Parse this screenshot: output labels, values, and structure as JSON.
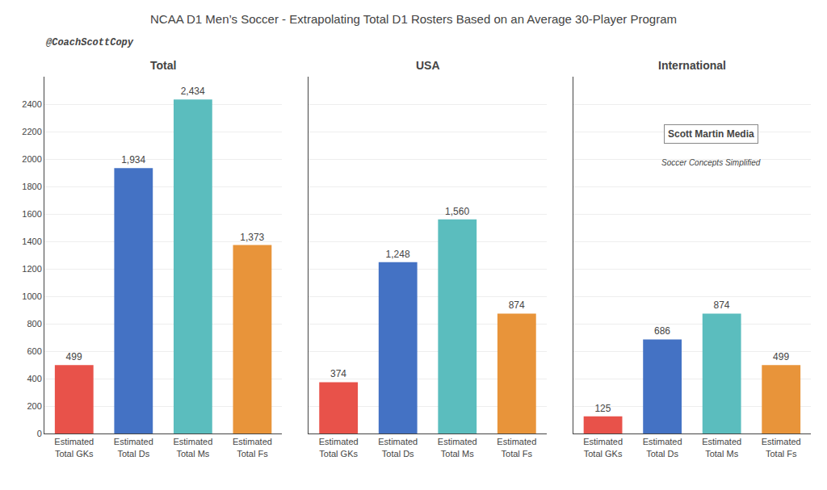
{
  "title": "NCAA D1 Men’s Soccer - Extrapolating Total D1 Rosters Based on an Average 30-Player Program",
  "annotations": [
    "@CoachScottCopy",
    "Scott Martin Media",
    "Soccer Concepts Simplified"
  ],
  "chart_data": [
    {
      "type": "bar",
      "title": "Total",
      "categories": [
        "Estimated\nTotal GKs",
        "Estimated\nTotal Ds",
        "Estimated\nTotal Ms",
        "Estimated\nTotal Fs"
      ],
      "values": [
        499,
        1934,
        2434,
        1373
      ],
      "value_labels": [
        "499",
        "1,934",
        "2,434",
        "1,373"
      ],
      "colors": [
        "#E8524A",
        "#4472C4",
        "#5BBDBE",
        "#E8943A"
      ],
      "ylim": [
        0,
        2600
      ],
      "yticks": [
        0,
        200,
        400,
        600,
        800,
        1000,
        1200,
        1400,
        1600,
        1800,
        2000,
        2200,
        2400
      ],
      "grid": true,
      "data_labels": true
    },
    {
      "type": "bar",
      "title": "USA",
      "categories": [
        "Estimated\nTotal GKs",
        "Estimated\nTotal Ds",
        "Estimated\nTotal Ms",
        "Estimated\nTotal Fs"
      ],
      "values": [
        374,
        1248,
        1560,
        874
      ],
      "value_labels": [
        "374",
        "1,248",
        "1,560",
        "874"
      ],
      "colors": [
        "#E8524A",
        "#4472C4",
        "#5BBDBE",
        "#E8943A"
      ],
      "ylim": [
        0,
        2600
      ],
      "yticks": [
        0,
        200,
        400,
        600,
        800,
        1000,
        1200,
        1400,
        1600,
        1800,
        2000,
        2200,
        2400
      ],
      "grid": true,
      "data_labels": true,
      "tick_labels": "x"
    },
    {
      "type": "bar",
      "title": "International",
      "categories": [
        "Estimated\nTotal GKs",
        "Estimated\nTotal Ds",
        "Estimated\nTotal Ms",
        "Estimated\nTotal Fs"
      ],
      "values": [
        125,
        686,
        874,
        499
      ],
      "value_labels": [
        "125",
        "686",
        "874",
        "499"
      ],
      "colors": [
        "#E8524A",
        "#4472C4",
        "#5BBDBE",
        "#E8943A"
      ],
      "ylim": [
        0,
        2600
      ],
      "yticks": [
        0,
        200,
        400,
        600,
        800,
        1000,
        1200,
        1400,
        1600,
        1800,
        2000,
        2200,
        2400
      ],
      "grid": true,
      "data_labels": true,
      "tick_labels": "x"
    }
  ]
}
